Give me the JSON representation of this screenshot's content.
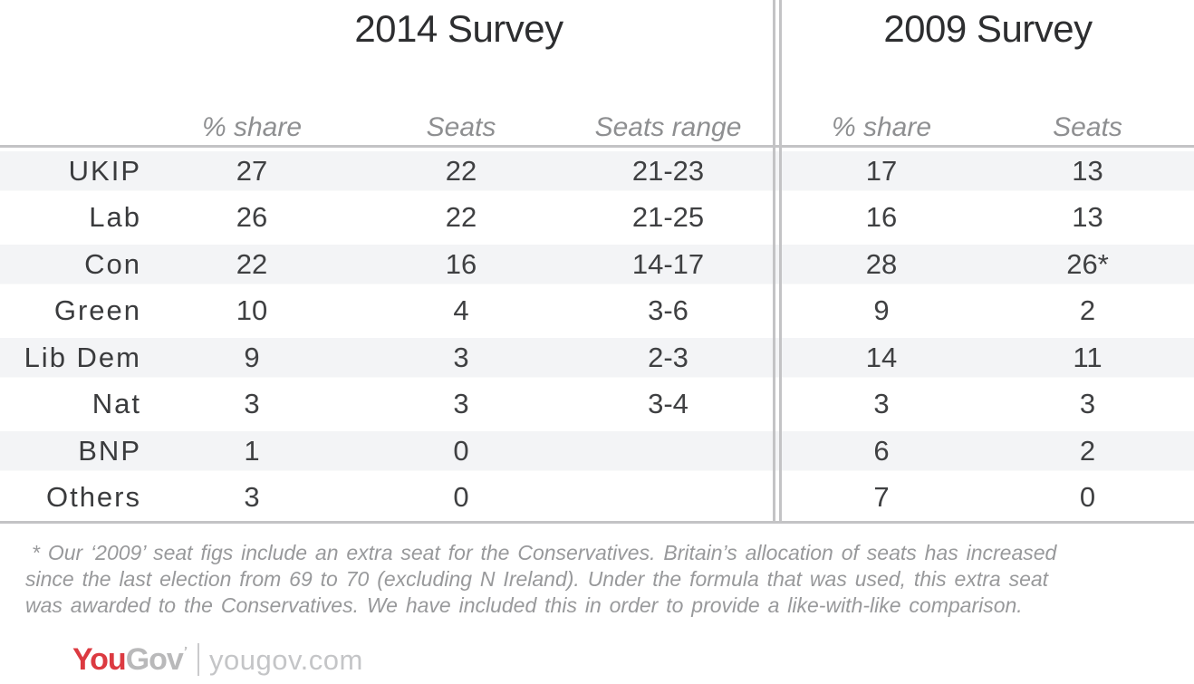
{
  "chart_data": {
    "type": "table",
    "sections": [
      {
        "title": "2014 Survey",
        "columns": [
          "% share",
          "Seats",
          "Seats range"
        ]
      },
      {
        "title": "2009 Survey",
        "columns": [
          "% share",
          "Seats"
        ]
      }
    ],
    "rows": [
      {
        "party": "UKIP",
        "values": [
          "27",
          "22",
          "21-23",
          "17",
          "13"
        ]
      },
      {
        "party": "Lab",
        "values": [
          "26",
          "22",
          "21-25",
          "16",
          "13"
        ]
      },
      {
        "party": "Con",
        "values": [
          "22",
          "16",
          "14-17",
          "28",
          "26*"
        ]
      },
      {
        "party": "Green",
        "values": [
          "10",
          "4",
          "3-6",
          "9",
          "2"
        ]
      },
      {
        "party": "Lib Dem",
        "values": [
          "9",
          "3",
          "2-3",
          "14",
          "11"
        ]
      },
      {
        "party": "Nat",
        "values": [
          "3",
          "3",
          "3-4",
          "3",
          "3"
        ]
      },
      {
        "party": "BNP",
        "values": [
          "1",
          "0",
          "",
          "6",
          "2"
        ]
      },
      {
        "party": "Others",
        "values": [
          "3",
          "0",
          "",
          "7",
          "0"
        ]
      }
    ],
    "footnote": "* Our ‘2009’ seat figs include an extra seat for the Conservatives. Britain’s allocation of seats has increased since the last election from 69 to 70 (excluding N Ireland). Under the formula that was used, this extra seat was awarded to the Conservatives. We have included this in order to provide a like-with-like comparison.",
    "source": "yougov.com"
  },
  "footnote_lines": [
    "* Our ‘2009’ seat figs include an extra seat for the Conservatives. Britain’s allocation of seats has increased",
    "since the last election from 69 to 70 (excluding N Ireland). Under the formula that was used, this extra seat",
    "was awarded to the Conservatives. We have included this in order to provide a like-with-like comparison."
  ],
  "footer": {
    "logo_you": "You",
    "logo_gov": "Gov",
    "site": "yougov.com"
  },
  "colors": {
    "logo_red": "#dc3a41",
    "logo_gray": "#b9b9ba",
    "stripe": "#f3f4f6",
    "rule": "#c3c3c5",
    "text_dark": "#3f4042",
    "header_gray": "#8e8f91"
  }
}
